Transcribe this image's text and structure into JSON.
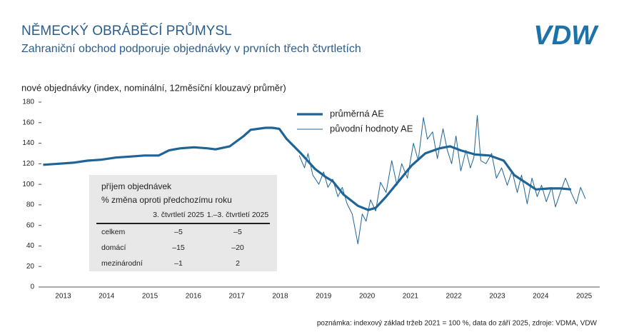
{
  "chart_data": {
    "type": "line",
    "title": "NĚMECKÝ OBRÁBĚCÍ PRŮMYSL",
    "subtitle": "Zahraniční obchod podporuje objednávky v prvních třech čtvrtletích",
    "y_label": "nové objednávky (index, nominální, 12měsíční klouzavý průměr)",
    "note": "poznámka: indexový základ tržeb 2021 = 100 %, data do září 2025, zdroje: VDMA, VDW",
    "xlim": [
      2013,
      2025.86
    ],
    "ylim": [
      0,
      180
    ],
    "yticks": [
      0,
      20,
      40,
      60,
      80,
      100,
      120,
      140,
      160,
      180
    ],
    "xticks": [
      {
        "value": 2013.5,
        "label": "2013"
      },
      {
        "value": 2014.5,
        "label": "2014"
      },
      {
        "value": 2015.5,
        "label": "2015"
      },
      {
        "value": 2016.5,
        "label": "2016"
      },
      {
        "value": 2017.5,
        "label": "2017"
      },
      {
        "value": 2018.5,
        "label": "2018"
      },
      {
        "value": 2019.5,
        "label": "2019"
      },
      {
        "value": 2020.5,
        "label": "2020"
      },
      {
        "value": 2021.5,
        "label": "2021"
      },
      {
        "value": 2022.5,
        "label": "2022"
      },
      {
        "value": 2023.5,
        "label": "2023"
      },
      {
        "value": 2024.5,
        "label": "2024"
      },
      {
        "value": 2025.5,
        "label": "2025"
      }
    ],
    "series": [
      {
        "name": "průměrná AE",
        "color": "#1f6496",
        "width": 3.2,
        "x": [
          2013.04,
          2013.4,
          2013.73,
          2014.06,
          2014.39,
          2014.71,
          2015.04,
          2015.37,
          2015.7,
          2015.94,
          2016.19,
          2016.52,
          2016.84,
          2017.01,
          2017.34,
          2017.66,
          2017.82,
          2018.16,
          2018.32,
          2018.48,
          2018.65,
          2018.98,
          2019.3,
          2019.55,
          2019.71,
          2019.96,
          2020.29,
          2020.53,
          2020.7,
          2020.94,
          2021.27,
          2021.52,
          2021.84,
          2022.17,
          2022.41,
          2022.66,
          2022.99,
          2023.32,
          2023.65,
          2023.89,
          2024.14,
          2024.39,
          2024.71,
          2024.96,
          2025.2
        ],
        "values": [
          119,
          120,
          121,
          123,
          124,
          126,
          127,
          128,
          128,
          133,
          135,
          136,
          135,
          134,
          137,
          147,
          153,
          155,
          155,
          154,
          144,
          130,
          115,
          107,
          103,
          90,
          79,
          75,
          77,
          88,
          105,
          118,
          130,
          135,
          137,
          133,
          129,
          128,
          123,
          109,
          102,
          95,
          96,
          96,
          95
        ]
      },
      {
        "name": "původní hodnoty AE",
        "color": "#1f6496",
        "width": 1,
        "x": [
          2018.94,
          2019.06,
          2019.14,
          2019.25,
          2019.39,
          2019.5,
          2019.6,
          2019.71,
          2019.83,
          2019.93,
          2020.04,
          2020.16,
          2020.29,
          2020.39,
          2020.48,
          2020.58,
          2020.7,
          2020.81,
          2020.94,
          2021.07,
          2021.19,
          2021.3,
          2021.43,
          2021.57,
          2021.68,
          2021.8,
          2021.89,
          2022.01,
          2022.12,
          2022.25,
          2022.35,
          2022.45,
          2022.55,
          2022.66,
          2022.78,
          2022.88,
          2022.96,
          2023.04,
          2023.12,
          2023.24,
          2023.37,
          2023.48,
          2023.6,
          2023.73,
          2023.84,
          2023.96,
          2024.06,
          2024.19,
          2024.3,
          2024.42,
          2024.52,
          2024.63,
          2024.75,
          2024.84,
          2024.96,
          2025.07,
          2025.2,
          2025.32,
          2025.42,
          2025.53
        ],
        "values": [
          128,
          116,
          130,
          109,
          100,
          112,
          97,
          105,
          88,
          97,
          81,
          71,
          42,
          71,
          64,
          85,
          74,
          102,
          92,
          123,
          99,
          120,
          106,
          140,
          123,
          165,
          144,
          151,
          125,
          154,
          133,
          120,
          147,
          113,
          133,
          116,
          126,
          167,
          123,
          120,
          130,
          106,
          116,
          99,
          113,
          92,
          109,
          81,
          106,
          88,
          99,
          83,
          97,
          78,
          93,
          106,
          92,
          81,
          97,
          86
        ]
      }
    ]
  },
  "logo": "VDW",
  "inset_table": {
    "title": "příjem objednávek",
    "subtitle": "% změna oproti předchozímu roku",
    "columns": [
      "3. čtvrtletí 2025",
      "1.–3. čtvrtletí 2025"
    ],
    "rows": [
      [
        "celkem",
        "–5",
        "–5"
      ],
      [
        "domácí",
        "–15",
        "–20"
      ],
      [
        "mezinárodní",
        "–1",
        "2"
      ]
    ]
  }
}
